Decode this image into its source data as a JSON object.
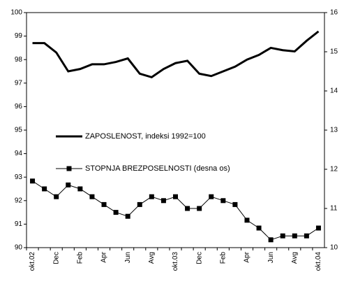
{
  "chart_data": {
    "type": "line",
    "categories": [
      "okt.02",
      null,
      "Dec",
      null,
      "Feb",
      null,
      "Apr",
      null,
      "Jun",
      null,
      "Avg",
      null,
      "okt.03",
      null,
      "Dec",
      null,
      "Feb",
      null,
      "Apr",
      null,
      "Jun",
      null,
      "Avg",
      null,
      "okt.04"
    ],
    "series": [
      {
        "name": "ZAPOSLENOST, indeksi 1992=100",
        "color": "#000000",
        "axis": "y",
        "values": [
          98.7,
          98.7,
          98.3,
          97.5,
          97.6,
          97.8,
          97.8,
          97.9,
          98.05,
          97.4,
          97.25,
          97.6,
          97.85,
          97.95,
          97.4,
          97.3,
          97.5,
          97.7,
          98.0,
          98.2,
          98.5,
          98.4,
          98.35,
          98.8,
          99.2
        ]
      },
      {
        "name": "STOPNJA BREZPOSELNOSTI (desna os)",
        "color": "#000000",
        "axis": "y2",
        "values": [
          11.7,
          11.5,
          11.3,
          11.6,
          11.5,
          11.3,
          11.1,
          10.9,
          10.8,
          11.1,
          11.3,
          11.2,
          11.3,
          11.0,
          11.0,
          11.3,
          11.2,
          11.1,
          10.7,
          10.5,
          10.2,
          10.3,
          10.3,
          10.3,
          10.5
        ]
      }
    ],
    "ylim": [
      90,
      100
    ],
    "yticks": [
      90,
      91,
      92,
      93,
      94,
      95,
      96,
      97,
      98,
      99,
      100
    ],
    "y2lim": [
      10,
      16
    ],
    "y2ticks": [
      10,
      11,
      12,
      13,
      14,
      15,
      16
    ]
  }
}
